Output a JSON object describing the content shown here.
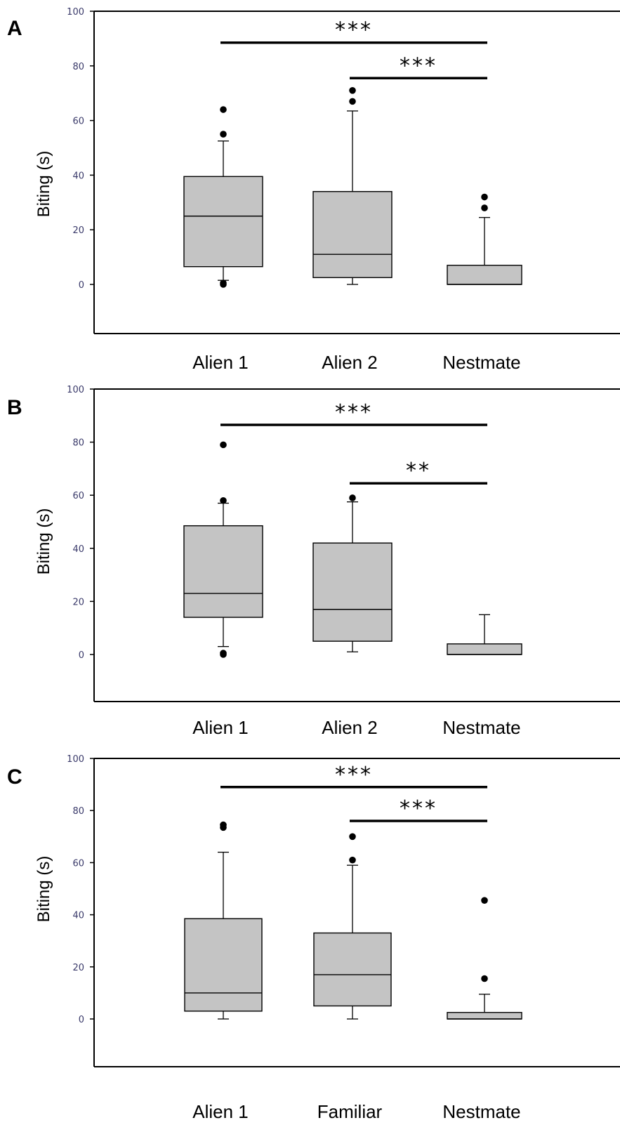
{
  "chart_data": [
    {
      "type": "box",
      "panel": "A",
      "ylabel": "Biting (s)",
      "ylim": [
        -17,
        100
      ],
      "yticks": [
        0,
        20,
        40,
        60,
        80,
        100
      ],
      "categories": [
        "Alien 1",
        "Alien 2",
        "Nestmate"
      ],
      "boxes": [
        {
          "q1": 6.5,
          "median": 25,
          "q3": 39.5,
          "whisker_low": 1.5,
          "whisker_high": 52.5,
          "outliers": [
            0.5,
            0,
            55,
            64
          ]
        },
        {
          "q1": 2.5,
          "median": 11,
          "q3": 34,
          "whisker_low": 0,
          "whisker_high": 63.5,
          "outliers": [
            67,
            71
          ]
        },
        {
          "q1": 0,
          "median": 0,
          "q3": 7,
          "whisker_low": 0,
          "whisker_high": 24.5,
          "outliers": [
            28,
            32
          ]
        }
      ],
      "significance": [
        {
          "from": "Alien 1",
          "to": "Nestmate",
          "label": "***",
          "y": 88.5
        },
        {
          "from": "Alien 2",
          "to": "Nestmate",
          "label": "***",
          "y": 75.5
        }
      ]
    },
    {
      "type": "box",
      "panel": "B",
      "ylabel": "Biting (s)",
      "ylim": [
        -17,
        100
      ],
      "yticks": [
        0,
        20,
        40,
        60,
        80,
        100
      ],
      "categories": [
        "Alien 1",
        "Alien 2",
        "Nestmate"
      ],
      "boxes": [
        {
          "q1": 14,
          "median": 23,
          "q3": 48.5,
          "whisker_low": 3,
          "whisker_high": 57,
          "outliers": [
            0.5,
            0,
            58,
            79
          ]
        },
        {
          "q1": 5,
          "median": 17,
          "q3": 42,
          "whisker_low": 1,
          "whisker_high": 57.5,
          "outliers": [
            59
          ]
        },
        {
          "q1": 0,
          "median": 0,
          "q3": 4,
          "whisker_low": 0,
          "whisker_high": 15,
          "outliers": []
        }
      ],
      "significance": [
        {
          "from": "Alien 1",
          "to": "Nestmate",
          "label": "***",
          "y": 86.5
        },
        {
          "from": "Alien 2",
          "to": "Nestmate",
          "label": "**",
          "y": 64.5
        }
      ]
    },
    {
      "type": "box",
      "panel": "C",
      "ylabel": "Biting (s)",
      "ylim": [
        -17,
        100
      ],
      "yticks": [
        0,
        20,
        40,
        60,
        80,
        100
      ],
      "categories": [
        "Alien 1",
        "Familiar",
        "Nestmate"
      ],
      "boxes": [
        {
          "q1": 3,
          "median": 10,
          "q3": 38.5,
          "whisker_low": 0,
          "whisker_high": 64,
          "outliers": [
            73.5,
            74.5
          ]
        },
        {
          "q1": 5,
          "median": 17,
          "q3": 33,
          "whisker_low": 0,
          "whisker_high": 59,
          "outliers": [
            61,
            70
          ]
        },
        {
          "q1": 0,
          "median": 0,
          "q3": 2.5,
          "whisker_low": 0,
          "whisker_high": 9.5,
          "outliers": [
            15.5,
            45.5
          ]
        }
      ],
      "significance": [
        {
          "from": "Alien 1",
          "to": "Nestmate",
          "label": "***",
          "y": 89
        },
        {
          "from": "Familiar",
          "to": "Nestmate",
          "label": "***",
          "y": 76
        }
      ]
    }
  ],
  "colors": {
    "box_fill": "#c4c4c4",
    "stroke": "#000000",
    "tick_label": "#3a3a6a"
  }
}
